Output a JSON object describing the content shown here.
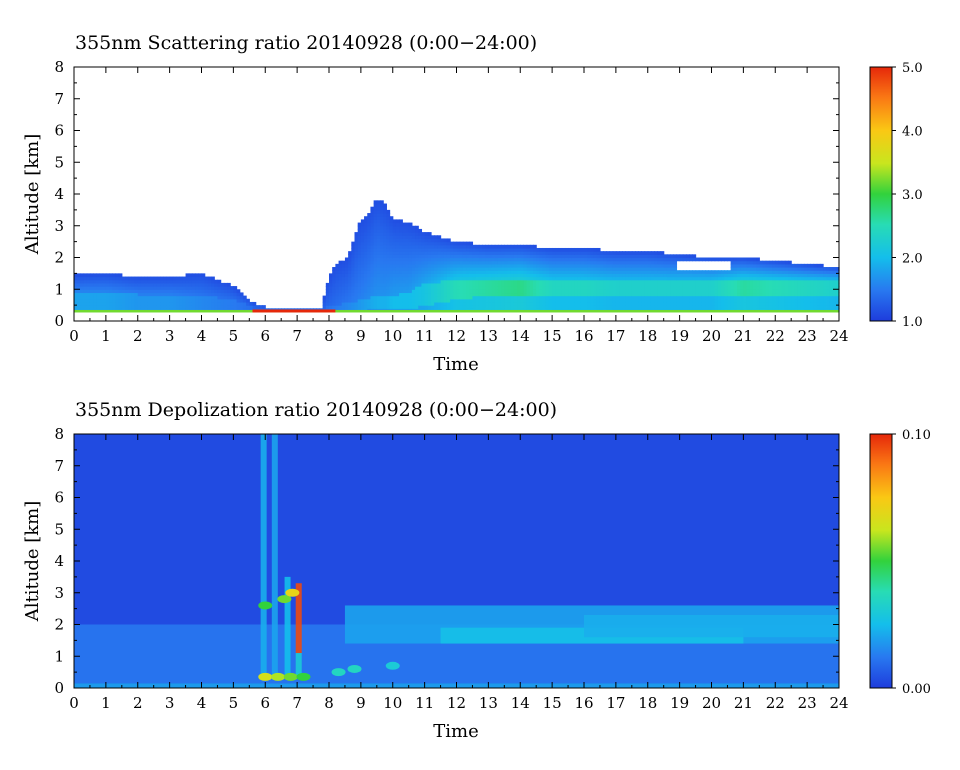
{
  "chart_data": [
    {
      "type": "heatmap",
      "title": "355nm Scattering ratio  20140928 (0:00−24:00)",
      "xlabel": "Time",
      "ylabel": "Altitude [km]",
      "xlim": [
        0,
        24
      ],
      "ylim": [
        0,
        8
      ],
      "x_ticks": [
        "0",
        "1",
        "2",
        "3",
        "4",
        "5",
        "6",
        "7",
        "8",
        "9",
        "10",
        "11",
        "12",
        "13",
        "14",
        "15",
        "16",
        "17",
        "18",
        "19",
        "20",
        "21",
        "22",
        "23",
        "24"
      ],
      "y_ticks": [
        "0",
        "1",
        "2",
        "3",
        "4",
        "5",
        "6",
        "7",
        "8"
      ],
      "colorbar": {
        "min": 1.0,
        "max": 5.0,
        "tick_labels": [
          "1.0",
          "2.0",
          "3.0",
          "4.0",
          "5.0"
        ],
        "tick_values": [
          1,
          2,
          3,
          4,
          5
        ]
      },
      "background": "no-data",
      "columns": [
        {
          "t": 0.0,
          "top": 1.45,
          "core": [
            0.35,
            0.9
          ],
          "peak": 1.8
        },
        {
          "t": 1.0,
          "top": 1.5,
          "core": [
            0.35,
            0.9
          ],
          "peak": 1.8
        },
        {
          "t": 2.0,
          "top": 1.4,
          "core": [
            0.35,
            0.85
          ],
          "peak": 1.7
        },
        {
          "t": 3.0,
          "top": 1.4,
          "core": [
            0.35,
            0.85
          ],
          "peak": 1.7
        },
        {
          "t": 4.0,
          "top": 1.5,
          "core": [
            0.35,
            0.8
          ],
          "peak": 1.6
        },
        {
          "t": 5.0,
          "top": 1.1,
          "core": [
            0.35,
            0.7
          ],
          "peak": 1.5
        },
        {
          "t": 5.6,
          "top": 0.6,
          "core": [
            0.35,
            0.45
          ],
          "peak": 1.4
        },
        {
          "t": 6.0,
          "top": 0.45,
          "core": [
            0.35,
            0.4
          ],
          "peak": 1.4
        },
        {
          "t": 7.0,
          "top": 0.4,
          "core": [
            0.35,
            0.4
          ],
          "peak": 1.4
        },
        {
          "t": 7.8,
          "top": 0.4,
          "core": [
            0.35,
            0.4
          ],
          "peak": 1.4
        },
        {
          "t": 7.9,
          "top": 1.1,
          "core": [
            0.35,
            0.45
          ],
          "peak": 1.4
        },
        {
          "t": 8.2,
          "top": 1.8,
          "core": [
            0.35,
            0.5
          ],
          "peak": 1.5
        },
        {
          "t": 8.6,
          "top": 2.0,
          "core": [
            0.35,
            0.6
          ],
          "peak": 1.6
        },
        {
          "t": 8.9,
          "top": 3.0,
          "core": [
            0.35,
            0.65
          ],
          "peak": 1.7
        },
        {
          "t": 9.2,
          "top": 3.3,
          "core": [
            0.35,
            0.7
          ],
          "peak": 1.8
        },
        {
          "t": 9.5,
          "top": 3.9,
          "core": [
            0.4,
            0.8
          ],
          "peak": 1.9
        },
        {
          "t": 9.8,
          "top": 3.6,
          "core": [
            0.4,
            0.8
          ],
          "peak": 1.9
        },
        {
          "t": 10.0,
          "top": 3.2,
          "core": [
            0.4,
            0.8
          ],
          "peak": 2.0
        },
        {
          "t": 10.5,
          "top": 3.1,
          "core": [
            0.4,
            0.9
          ],
          "peak": 2.0
        },
        {
          "t": 11.0,
          "top": 2.8,
          "core": [
            0.5,
            1.2
          ],
          "peak": 2.1
        },
        {
          "t": 12.0,
          "top": 2.5,
          "core": [
            0.7,
            1.3
          ],
          "peak": 2.5
        },
        {
          "t": 13.0,
          "top": 2.4,
          "core": [
            0.8,
            1.3
          ],
          "peak": 2.6
        },
        {
          "t": 14.0,
          "top": 2.4,
          "core": [
            0.8,
            1.3
          ],
          "peak": 2.7
        },
        {
          "t": 15.0,
          "top": 2.3,
          "core": [
            0.8,
            1.3
          ],
          "peak": 2.4
        },
        {
          "t": 16.0,
          "top": 2.3,
          "core": [
            0.8,
            1.3
          ],
          "peak": 2.4
        },
        {
          "t": 17.0,
          "top": 2.2,
          "core": [
            0.8,
            1.3
          ],
          "peak": 2.3
        },
        {
          "t": 18.0,
          "top": 2.2,
          "core": [
            0.8,
            1.3
          ],
          "peak": 2.3
        },
        {
          "t": 19.0,
          "top": 2.1,
          "core": [
            0.8,
            1.3
          ],
          "peak": 2.3
        },
        {
          "t": 20.0,
          "top": 2.0,
          "core": [
            0.8,
            1.3
          ],
          "peak": 2.3
        },
        {
          "t": 21.0,
          "top": 2.0,
          "core": [
            0.8,
            1.3
          ],
          "peak": 2.6
        },
        {
          "t": 22.0,
          "top": 1.9,
          "core": [
            0.8,
            1.3
          ],
          "peak": 2.5
        },
        {
          "t": 23.0,
          "top": 1.8,
          "core": [
            0.8,
            1.3
          ],
          "peak": 2.4
        },
        {
          "t": 24.0,
          "top": 1.7,
          "core": [
            0.8,
            1.3
          ],
          "peak": 2.3
        }
      ],
      "gaps": [
        {
          "t0": 18.9,
          "t1": 20.6,
          "z0": 1.65,
          "z1": 1.85
        }
      ],
      "surface_layer": {
        "altitude": 0.3,
        "value": 5.0,
        "t0": 5.6,
        "t1": 8.2
      }
    },
    {
      "type": "heatmap",
      "title": "355nm Depolization ratio  20140928 (0:00−24:00)",
      "xlabel": "Time",
      "ylabel": "Altitude [km]",
      "xlim": [
        0,
        24
      ],
      "ylim": [
        0,
        8
      ],
      "x_ticks": [
        "0",
        "1",
        "2",
        "3",
        "4",
        "5",
        "6",
        "7",
        "8",
        "9",
        "10",
        "11",
        "12",
        "13",
        "14",
        "15",
        "16",
        "17",
        "18",
        "19",
        "20",
        "21",
        "22",
        "23",
        "24"
      ],
      "y_ticks": [
        "0",
        "1",
        "2",
        "3",
        "4",
        "5",
        "6",
        "7",
        "8"
      ],
      "colorbar": {
        "min": 0.0,
        "max": 0.1,
        "tick_labels": [
          "0.00",
          "0.10"
        ],
        "tick_values": [
          0.0,
          0.1
        ]
      },
      "background_value": 0.003,
      "layers": [
        {
          "t0": 0,
          "t1": 24,
          "z0": 0.0,
          "z1": 0.15,
          "value": 0.02
        },
        {
          "t0": 0,
          "t1": 24,
          "z0": 0.15,
          "z1": 2.0,
          "value": 0.012
        },
        {
          "t0": 8.5,
          "t1": 24,
          "z0": 1.4,
          "z1": 2.6,
          "value": 0.02
        },
        {
          "t0": 11.5,
          "t1": 21.0,
          "z0": 1.4,
          "z1": 1.9,
          "value": 0.026
        },
        {
          "t0": 16.0,
          "t1": 24.0,
          "z0": 1.6,
          "z1": 2.3,
          "value": 0.022
        }
      ],
      "plumes": [
        {
          "t": 5.95,
          "z0": 0.3,
          "z1": 8.0,
          "value": 0.022
        },
        {
          "t": 6.3,
          "z0": 0.3,
          "z1": 8.0,
          "value": 0.02
        },
        {
          "t": 6.7,
          "z0": 0.3,
          "z1": 3.5,
          "value": 0.025
        },
        {
          "t": 7.05,
          "z0": 1.1,
          "z1": 3.3,
          "value": 0.095
        },
        {
          "t": 7.05,
          "z0": 0.3,
          "z1": 1.1,
          "value": 0.03
        }
      ],
      "spots": [
        {
          "t": 6.0,
          "z": 0.35,
          "value": 0.065
        },
        {
          "t": 6.4,
          "z": 0.35,
          "value": 0.06
        },
        {
          "t": 6.8,
          "z": 0.35,
          "value": 0.055
        },
        {
          "t": 7.2,
          "z": 0.35,
          "value": 0.05
        },
        {
          "t": 8.3,
          "z": 0.5,
          "value": 0.035
        },
        {
          "t": 8.8,
          "z": 0.6,
          "value": 0.035
        },
        {
          "t": 10.0,
          "z": 0.7,
          "value": 0.03
        },
        {
          "t": 6.0,
          "z": 2.6,
          "value": 0.05
        },
        {
          "t": 6.6,
          "z": 2.8,
          "value": 0.055
        },
        {
          "t": 6.85,
          "z": 3.0,
          "value": 0.07
        }
      ]
    }
  ]
}
